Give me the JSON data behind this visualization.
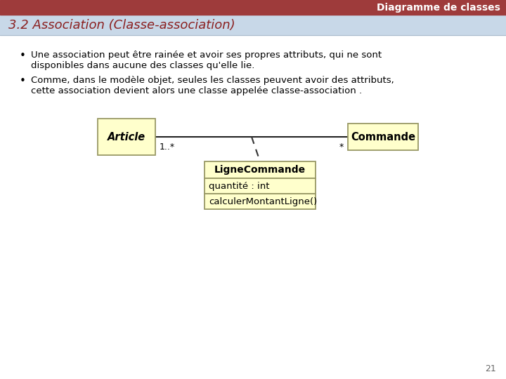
{
  "title_bar_text": "Diagramme de classes",
  "title_bar_color": "#9E3B3B",
  "title_bar_text_color": "#FFFFFF",
  "slide_title": "3.2 Association (Classe-association)",
  "slide_title_color": "#8B2020",
  "background_color": "#D0DCE8",
  "content_background": "#FFFFFF",
  "header_bg": "#C8D8E8",
  "bullet1_line1": "Une association peut être rainée et avoir ses propres attributs, qui ne sont",
  "bullet1_line2": "disponibles dans aucune des classes qu'elle lie.",
  "bullet2_line1": "Comme, dans le modèle objet, seules les classes peuvent avoir des attributs,",
  "bullet2_line2": "cette association devient alors une classe appelée classe-association .",
  "box_fill": "#FFFFCC",
  "box_edge": "#999966",
  "article_label": "Article",
  "commande_label": "Commande",
  "lignecommande_name": "LigneCommande",
  "lignecommande_attr1": "quantité : int",
  "lignecommande_method1": "calculerMontantLigne()",
  "mult_left": "1..*",
  "mult_right": "*",
  "page_number": "21",
  "font_color": "#000000",
  "text_color_dark": "#111111"
}
